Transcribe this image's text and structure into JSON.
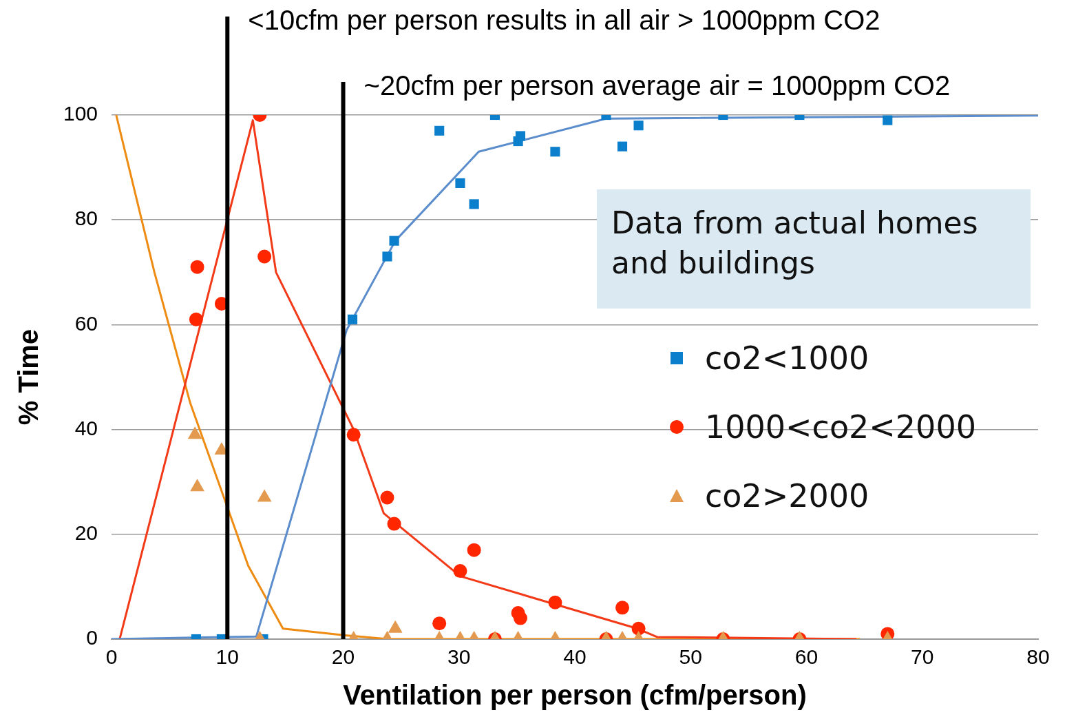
{
  "chart_data": {
    "type": "scatter",
    "xlabel": "Ventilation per person (cfm/person)",
    "ylabel": "% Time",
    "xlim": [
      0,
      80
    ],
    "xticks": [
      0,
      10,
      20,
      30,
      40,
      50,
      60,
      70,
      80
    ],
    "ylim": [
      0,
      100
    ],
    "yticks": [
      0,
      20,
      40,
      60,
      80,
      100
    ],
    "grid": "y",
    "legend": "right",
    "series": [
      {
        "name": "co2<1000",
        "marker": "square",
        "color": "#0b7fcc",
        "x": [
          7.3,
          9.5,
          13.1,
          20.8,
          23.8,
          24.4,
          28.3,
          30.1,
          31.3,
          33.1,
          35.1,
          35.3,
          38.3,
          42.7,
          44.1,
          45.5,
          52.8,
          59.4,
          67.0
        ],
        "values": [
          0,
          0,
          0,
          61,
          73,
          76,
          97,
          87,
          83,
          100,
          95,
          96,
          93,
          100,
          94,
          98,
          100,
          100,
          99
        ]
      },
      {
        "name": "1000<co2<2000",
        "marker": "circle",
        "color": "#ff2600",
        "x": [
          7.3,
          7.4,
          9.5,
          12.8,
          13.2,
          20.9,
          23.8,
          24.4,
          28.3,
          30.1,
          31.3,
          33.1,
          35.1,
          35.3,
          38.3,
          42.7,
          44.1,
          45.5,
          52.8,
          59.4,
          67.0
        ],
        "values": [
          61,
          71,
          64,
          100,
          73,
          39,
          27,
          22,
          3,
          13,
          17,
          0,
          5,
          4,
          7,
          0,
          6,
          2,
          0,
          0,
          1
        ]
      },
      {
        "name": "co2>2000",
        "marker": "triangle",
        "color": "#e3994e",
        "x": [
          7.2,
          7.4,
          9.5,
          12.8,
          13.2,
          20.9,
          23.8,
          24.5,
          28.3,
          30.1,
          31.3,
          33.1,
          35.1,
          38.3,
          42.7,
          44.1,
          45.5,
          52.8,
          59.4,
          67.0
        ],
        "values": [
          39,
          29,
          36,
          0,
          27,
          0,
          0,
          2,
          0,
          0,
          0,
          0,
          0,
          0,
          0,
          0,
          0,
          0,
          0,
          0
        ]
      },
      {
        "type": "line",
        "marker": "none",
        "color": "#5b8dcc",
        "x": [
          0,
          12.5,
          20.3,
          24.5,
          31.7,
          42.7,
          80
        ],
        "values": [
          0,
          0.5,
          59,
          76,
          93,
          99.3,
          99.9
        ]
      },
      {
        "type": "line",
        "marker": "none",
        "color": "#f23a18",
        "x": [
          0.7,
          12.2,
          14.2,
          20.9,
          23.5,
          30.1,
          45.4,
          47.1,
          64.3
        ],
        "values": [
          0,
          99,
          70,
          40,
          24,
          12,
          2,
          0.4,
          0
        ]
      },
      {
        "type": "line",
        "marker": "none",
        "color": "#ee8b12",
        "x": [
          0.4,
          3.7,
          6.8,
          11.8,
          14.8,
          20.3,
          23.9,
          64.6
        ],
        "values": [
          100,
          70,
          45,
          14,
          2,
          0.7,
          0,
          0
        ]
      }
    ],
    "ref_lines": [
      {
        "axis": "x",
        "value": 10,
        "label": "<10cfm per person results in all air > 1000ppm CO2",
        "color": "#000000"
      },
      {
        "axis": "x",
        "value": 20,
        "label": "~20cfm per person average air = 1000ppm CO2",
        "color": "#000000"
      }
    ],
    "annotations": [
      "Data from actual homes and buildings"
    ]
  }
}
